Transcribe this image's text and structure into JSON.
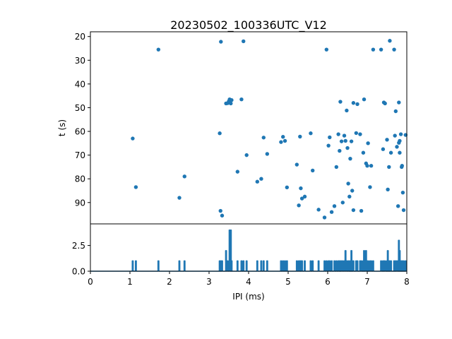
{
  "chart_data": [
    {
      "type": "scatter",
      "title": "20230502_100336UTC_V12",
      "xlabel": "",
      "ylabel": "t (s)",
      "xlim": [
        0,
        8
      ],
      "ylim": [
        99,
        18
      ],
      "y_inverted": true,
      "yticks": [
        20,
        30,
        40,
        50,
        60,
        70,
        80,
        90
      ],
      "color": "#1f77b4",
      "points": [
        [
          1.07,
          63
        ],
        [
          1.15,
          83.5
        ],
        [
          1.72,
          25.5
        ],
        [
          2.25,
          88
        ],
        [
          2.38,
          79
        ],
        [
          3.27,
          60.8
        ],
        [
          3.29,
          93.5
        ],
        [
          3.3,
          22.2
        ],
        [
          3.33,
          95.5
        ],
        [
          3.43,
          48.2
        ],
        [
          3.47,
          48.1
        ],
        [
          3.5,
          47.3
        ],
        [
          3.52,
          46.5
        ],
        [
          3.55,
          48.2
        ],
        [
          3.57,
          46.8
        ],
        [
          3.72,
          77
        ],
        [
          3.82,
          46.5
        ],
        [
          3.87,
          22
        ],
        [
          3.95,
          70
        ],
        [
          4.22,
          81.2
        ],
        [
          4.32,
          80
        ],
        [
          4.38,
          62.6
        ],
        [
          4.47,
          69.5
        ],
        [
          4.82,
          64.5
        ],
        [
          4.87,
          62.3
        ],
        [
          4.92,
          64
        ],
        [
          4.97,
          83.6
        ],
        [
          5.22,
          74
        ],
        [
          5.27,
          91.2
        ],
        [
          5.3,
          62.2
        ],
        [
          5.32,
          84
        ],
        [
          5.35,
          88.3
        ],
        [
          5.42,
          87.5
        ],
        [
          5.57,
          60.8
        ],
        [
          5.62,
          76.5
        ],
        [
          5.77,
          93
        ],
        [
          5.92,
          96.3
        ],
        [
          5.97,
          25.5
        ],
        [
          6.02,
          66
        ],
        [
          6.05,
          62.5
        ],
        [
          6.1,
          94
        ],
        [
          6.17,
          91.5
        ],
        [
          6.22,
          75
        ],
        [
          6.27,
          61.2
        ],
        [
          6.32,
          47.5
        ],
        [
          6.3,
          68.2
        ],
        [
          6.35,
          64.2
        ],
        [
          6.38,
          90
        ],
        [
          6.42,
          61.8
        ],
        [
          6.45,
          64
        ],
        [
          6.48,
          51.2
        ],
        [
          6.5,
          67
        ],
        [
          6.52,
          82
        ],
        [
          6.55,
          87.5
        ],
        [
          6.57,
          71.5
        ],
        [
          6.6,
          64.2
        ],
        [
          6.62,
          85
        ],
        [
          6.65,
          48
        ],
        [
          6.65,
          93.2
        ],
        [
          6.72,
          60.7
        ],
        [
          6.75,
          48.5
        ],
        [
          6.82,
          61.2
        ],
        [
          6.85,
          93.5
        ],
        [
          6.9,
          69
        ],
        [
          6.92,
          46.5
        ],
        [
          6.97,
          73.5
        ],
        [
          7.0,
          74.5
        ],
        [
          7.02,
          65
        ],
        [
          7.07,
          83.5
        ],
        [
          7.1,
          74.5
        ],
        [
          7.15,
          25.5
        ],
        [
          7.35,
          25.5
        ],
        [
          7.4,
          67.5
        ],
        [
          7.42,
          47.8
        ],
        [
          7.45,
          48.2
        ],
        [
          7.5,
          63.5
        ],
        [
          7.52,
          84.5
        ],
        [
          7.55,
          75
        ],
        [
          7.57,
          21.8
        ],
        [
          7.6,
          69
        ],
        [
          7.68,
          25.5
        ],
        [
          7.7,
          61.8
        ],
        [
          7.72,
          51.5
        ],
        [
          7.75,
          66.5
        ],
        [
          7.78,
          91.5
        ],
        [
          7.8,
          47.8
        ],
        [
          7.82,
          64
        ],
        [
          7.8,
          64.8
        ],
        [
          7.82,
          69
        ],
        [
          7.85,
          61.2
        ],
        [
          7.87,
          75
        ],
        [
          7.88,
          74.5
        ],
        [
          7.9,
          85.8
        ],
        [
          7.92,
          93.2
        ],
        [
          7.97,
          61.5
        ]
      ]
    },
    {
      "type": "line",
      "xlabel": "IPI (ms)",
      "ylabel": "",
      "xlim": [
        0,
        8
      ],
      "ylim": [
        0,
        4.6
      ],
      "xticks": [
        0,
        1,
        2,
        3,
        4,
        5,
        6,
        7,
        8
      ],
      "yticks": [
        0.0,
        2.5
      ],
      "ytick_labels": [
        "0.0",
        "2.5"
      ],
      "color": "#1f77b4",
      "peaks": [
        [
          1.07,
          1
        ],
        [
          1.15,
          1
        ],
        [
          1.72,
          1
        ],
        [
          2.25,
          1
        ],
        [
          2.38,
          1
        ],
        [
          3.27,
          1
        ],
        [
          3.29,
          1
        ],
        [
          3.3,
          1
        ],
        [
          3.33,
          1
        ],
        [
          3.43,
          2
        ],
        [
          3.47,
          1
        ],
        [
          3.52,
          4
        ],
        [
          3.55,
          4
        ],
        [
          3.57,
          1
        ],
        [
          3.72,
          1
        ],
        [
          3.82,
          1
        ],
        [
          3.87,
          1
        ],
        [
          3.95,
          1
        ],
        [
          4.22,
          1
        ],
        [
          4.32,
          1
        ],
        [
          4.38,
          1
        ],
        [
          4.47,
          1
        ],
        [
          4.82,
          1
        ],
        [
          4.87,
          1
        ],
        [
          4.92,
          1
        ],
        [
          4.97,
          1
        ],
        [
          5.22,
          1
        ],
        [
          5.27,
          1
        ],
        [
          5.3,
          1
        ],
        [
          5.32,
          1
        ],
        [
          5.35,
          1
        ],
        [
          5.42,
          1
        ],
        [
          5.57,
          1
        ],
        [
          5.62,
          1
        ],
        [
          5.77,
          1
        ],
        [
          5.92,
          1
        ],
        [
          5.97,
          1
        ],
        [
          6.02,
          1
        ],
        [
          6.05,
          1
        ],
        [
          6.1,
          1
        ],
        [
          6.17,
          1
        ],
        [
          6.22,
          1
        ],
        [
          6.27,
          1
        ],
        [
          6.3,
          1
        ],
        [
          6.32,
          1
        ],
        [
          6.35,
          1
        ],
        [
          6.38,
          1
        ],
        [
          6.42,
          1
        ],
        [
          6.45,
          2
        ],
        [
          6.48,
          1
        ],
        [
          6.52,
          1
        ],
        [
          6.55,
          1
        ],
        [
          6.57,
          1
        ],
        [
          6.6,
          2
        ],
        [
          6.62,
          1
        ],
        [
          6.65,
          1
        ],
        [
          6.72,
          1
        ],
        [
          6.75,
          1
        ],
        [
          6.82,
          1
        ],
        [
          6.85,
          1
        ],
        [
          6.9,
          1
        ],
        [
          6.92,
          2
        ],
        [
          6.97,
          2
        ],
        [
          7.0,
          1
        ],
        [
          7.02,
          1
        ],
        [
          7.07,
          1
        ],
        [
          7.1,
          1
        ],
        [
          7.15,
          1
        ],
        [
          7.35,
          1
        ],
        [
          7.4,
          1
        ],
        [
          7.42,
          1
        ],
        [
          7.45,
          1
        ],
        [
          7.5,
          1
        ],
        [
          7.52,
          2
        ],
        [
          7.55,
          1
        ],
        [
          7.57,
          1
        ],
        [
          7.6,
          1
        ],
        [
          7.68,
          1
        ],
        [
          7.7,
          1
        ],
        [
          7.72,
          1
        ],
        [
          7.75,
          1
        ],
        [
          7.78,
          1
        ],
        [
          7.8,
          3
        ],
        [
          7.82,
          2
        ],
        [
          7.85,
          1
        ],
        [
          7.87,
          1
        ],
        [
          7.88,
          1
        ],
        [
          7.9,
          1
        ],
        [
          7.92,
          1
        ],
        [
          7.97,
          1
        ]
      ]
    }
  ]
}
